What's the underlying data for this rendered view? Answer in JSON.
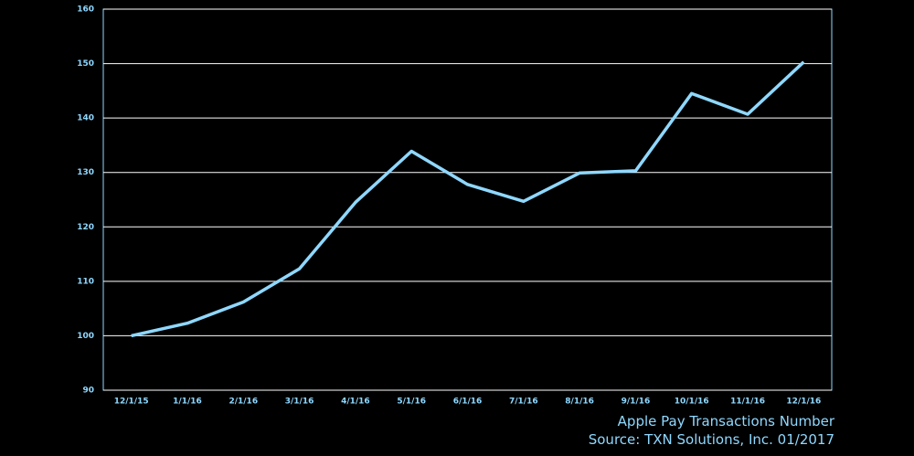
{
  "chart_data": {
    "type": "line",
    "title": "Apple Pay Transactions Number",
    "subtitle": "Source: TXN Solutions, Inc. 01/2017",
    "categories": [
      "12/1/15",
      "1/1/16",
      "2/1/16",
      "3/1/16",
      "4/1/16",
      "5/1/16",
      "6/1/16",
      "7/1/16",
      "8/1/16",
      "9/1/16",
      "10/1/16",
      "11/1/16",
      "12/1/16"
    ],
    "series": [
      {
        "name": "Apple Pay Transactions",
        "color": "#8fd8ff",
        "values": [
          100,
          102.3,
          106.2,
          112.3,
          124.5,
          133.9,
          127.8,
          124.7,
          129.9,
          130.3,
          144.5,
          140.7,
          150.3
        ]
      }
    ],
    "ylim": [
      90,
      160
    ],
    "yticks": [
      90,
      100,
      110,
      120,
      130,
      140,
      150,
      160
    ],
    "grid": true
  }
}
